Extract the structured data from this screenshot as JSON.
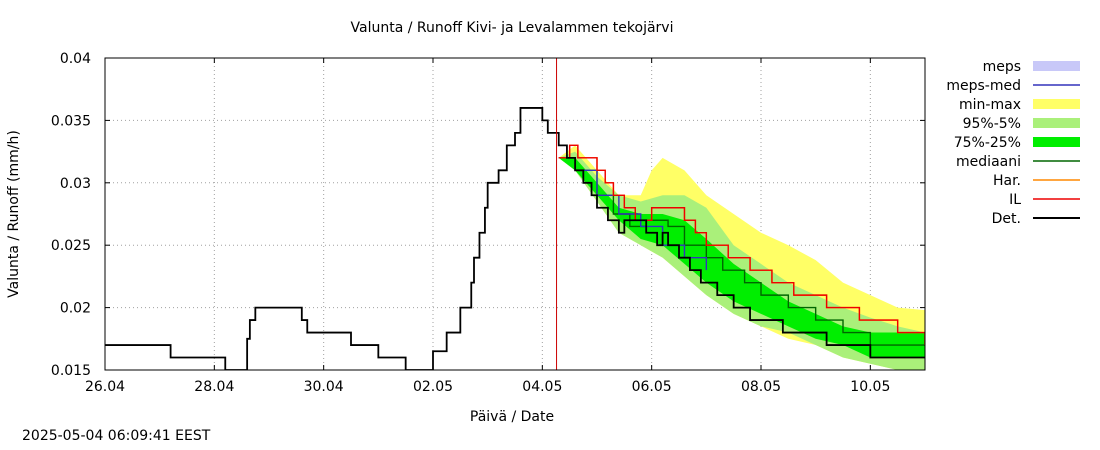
{
  "timestamp": "2025-05-04 06:09:41 EEST",
  "chart_data": {
    "type": "line",
    "title": "Valunta / Runoff  Kivi- ja Levalammen tekojärvi",
    "xlabel": "Päivä / Date",
    "ylabel": "Valunta / Runoff (mm/h)",
    "xlim": [
      0,
      15
    ],
    "ylim": [
      0.015,
      0.04
    ],
    "x_unit": "days since 26.04 00:00",
    "xticks": [
      {
        "x": 0,
        "label": "26.04"
      },
      {
        "x": 2,
        "label": "28.04"
      },
      {
        "x": 4,
        "label": "30.04"
      },
      {
        "x": 6,
        "label": "02.05"
      },
      {
        "x": 8,
        "label": "04.05"
      },
      {
        "x": 10,
        "label": "06.05"
      },
      {
        "x": 12,
        "label": "08.05"
      },
      {
        "x": 14,
        "label": "10.05"
      }
    ],
    "yticks": [
      {
        "y": 0.015,
        "label": "0.015"
      },
      {
        "y": 0.02,
        "label": "0.02"
      },
      {
        "y": 0.025,
        "label": "0.025"
      },
      {
        "y": 0.03,
        "label": "0.03"
      },
      {
        "y": 0.035,
        "label": "0.035"
      },
      {
        "y": 0.04,
        "label": "0.04"
      }
    ],
    "grid": true,
    "legend_position": "right",
    "forecast_start_x": 8.26,
    "legend": [
      {
        "label": "meps",
        "kind": "band",
        "color": "#c8c8f8"
      },
      {
        "label": "meps-med",
        "kind": "line",
        "color": "#3333bb"
      },
      {
        "label": "min-max",
        "kind": "band",
        "color": "#ffff66"
      },
      {
        "label": "95%-5%",
        "kind": "band",
        "color": "#aaf07a"
      },
      {
        "label": "75%-25%",
        "kind": "band",
        "color": "#00ee00"
      },
      {
        "label": "mediaani",
        "kind": "line",
        "color": "#006600"
      },
      {
        "label": "Har.",
        "kind": "line",
        "color": "#ff8800"
      },
      {
        "label": "IL",
        "kind": "line",
        "color": "#ee0000"
      },
      {
        "label": "Det.",
        "kind": "line",
        "color": "#000000"
      }
    ],
    "series": [
      {
        "name": "meps",
        "kind": "band",
        "color": "#c8c8f8",
        "x": [
          8.3,
          8.6,
          9.0,
          9.4,
          9.8,
          10.2,
          10.6,
          11.0
        ],
        "low": [
          0.032,
          0.0315,
          0.029,
          0.027,
          0.026,
          0.0245,
          0.0228,
          0.022
        ],
        "high": [
          0.032,
          0.0318,
          0.03,
          0.0285,
          0.0275,
          0.026,
          0.025,
          0.0245
        ]
      },
      {
        "name": "min-max",
        "kind": "band",
        "color": "#ffff66",
        "x": [
          8.3,
          8.6,
          9.0,
          9.4,
          9.8,
          10.0,
          10.2,
          10.6,
          11.0,
          11.5,
          12.0,
          12.5,
          13.0,
          13.5,
          14.0,
          14.5,
          15.0
        ],
        "low": [
          0.032,
          0.031,
          0.0285,
          0.026,
          0.025,
          0.0245,
          0.024,
          0.0225,
          0.021,
          0.0195,
          0.0185,
          0.0175,
          0.017,
          0.016,
          0.0155,
          0.015,
          0.0145
        ],
        "high": [
          0.032,
          0.033,
          0.031,
          0.029,
          0.029,
          0.031,
          0.032,
          0.031,
          0.029,
          0.0275,
          0.026,
          0.025,
          0.0238,
          0.022,
          0.021,
          0.02,
          0.0198
        ]
      },
      {
        "name": "95%-5%",
        "kind": "band",
        "color": "#aaf07a",
        "x": [
          8.3,
          8.6,
          9.0,
          9.4,
          9.8,
          10.2,
          10.6,
          11.0,
          11.5,
          12.0,
          12.5,
          13.0,
          13.5,
          14.0,
          14.5,
          15.0
        ],
        "low": [
          0.032,
          0.031,
          0.0285,
          0.026,
          0.025,
          0.024,
          0.0225,
          0.021,
          0.0195,
          0.0185,
          0.018,
          0.017,
          0.016,
          0.0155,
          0.015,
          0.0145
        ],
        "high": [
          0.032,
          0.0325,
          0.0305,
          0.029,
          0.0285,
          0.029,
          0.029,
          0.028,
          0.025,
          0.0235,
          0.022,
          0.021,
          0.02,
          0.0192,
          0.0185,
          0.018
        ]
      },
      {
        "name": "75%-25%",
        "kind": "band",
        "color": "#00ee00",
        "x": [
          8.3,
          8.6,
          9.0,
          9.4,
          9.8,
          10.2,
          10.6,
          11.0,
          11.5,
          12.0,
          12.5,
          13.0,
          13.5,
          14.0,
          14.5,
          15.0
        ],
        "low": [
          0.032,
          0.031,
          0.029,
          0.027,
          0.0255,
          0.025,
          0.0235,
          0.022,
          0.0205,
          0.0195,
          0.0185,
          0.0175,
          0.017,
          0.016,
          0.016,
          0.016
        ],
        "high": [
          0.032,
          0.032,
          0.03,
          0.028,
          0.0275,
          0.0275,
          0.027,
          0.0255,
          0.0235,
          0.022,
          0.0205,
          0.0195,
          0.0185,
          0.018,
          0.018,
          0.018
        ]
      },
      {
        "name": "mediaani",
        "kind": "step",
        "color": "#006600",
        "x": [
          8.3,
          8.6,
          9.0,
          9.3,
          9.6,
          9.9,
          10.3,
          10.6,
          11.0,
          11.3,
          11.7,
          12.0,
          12.5,
          13.0,
          13.5,
          14.0,
          15.0
        ],
        "y": [
          0.032,
          0.031,
          0.029,
          0.0275,
          0.0265,
          0.027,
          0.0265,
          0.025,
          0.024,
          0.023,
          0.022,
          0.021,
          0.02,
          0.019,
          0.018,
          0.017,
          0.017
        ]
      },
      {
        "name": "meps-med",
        "kind": "step",
        "color": "#3333bb",
        "x": [
          8.3,
          8.6,
          9.0,
          9.4,
          9.8,
          10.2,
          10.6,
          11.0
        ],
        "y": [
          0.032,
          0.031,
          0.029,
          0.0275,
          0.0265,
          0.025,
          0.024,
          0.023
        ]
      },
      {
        "name": "Har.",
        "kind": "step",
        "color": "#ff8800",
        "x": [
          8.3,
          8.5,
          8.65,
          8.8,
          9.0,
          9.15,
          9.3,
          9.5,
          9.7,
          9.85,
          10.0,
          10.4,
          10.6,
          10.8,
          11.0,
          11.4,
          11.8,
          12.2,
          12.6,
          13.2,
          13.8,
          14.5,
          15.0
        ],
        "y": [
          0.032,
          0.033,
          0.032,
          0.032,
          0.031,
          0.03,
          0.029,
          0.028,
          0.027,
          0.027,
          0.028,
          0.028,
          0.027,
          0.026,
          0.025,
          0.024,
          0.023,
          0.022,
          0.021,
          0.02,
          0.019,
          0.018,
          0.017
        ]
      },
      {
        "name": "IL",
        "kind": "step",
        "color": "#ee0000",
        "x": [
          8.3,
          8.5,
          8.65,
          8.8,
          9.0,
          9.15,
          9.3,
          9.5,
          9.7,
          9.85,
          10.0,
          10.4,
          10.6,
          10.8,
          11.0,
          11.4,
          11.8,
          12.2,
          12.6,
          13.2,
          13.8,
          14.5,
          15.0
        ],
        "y": [
          0.032,
          0.033,
          0.032,
          0.032,
          0.031,
          0.03,
          0.029,
          0.028,
          0.027,
          0.027,
          0.028,
          0.028,
          0.027,
          0.026,
          0.025,
          0.024,
          0.023,
          0.022,
          0.021,
          0.02,
          0.019,
          0.018,
          0.017
        ]
      },
      {
        "name": "Det.",
        "kind": "step",
        "color": "#000000",
        "x": [
          0,
          1.2,
          2.2,
          2.6,
          2.65,
          2.75,
          2.85,
          2.95,
          3.1,
          3.6,
          3.7,
          4.2,
          4.5,
          4.75,
          5.0,
          5.5,
          5.75,
          6.0,
          6.25,
          6.5,
          6.7,
          6.75,
          6.85,
          6.95,
          7.0,
          7.1,
          7.2,
          7.35,
          7.5,
          7.6,
          7.65,
          7.75,
          7.85,
          8.0,
          8.1,
          8.2,
          8.3,
          8.45,
          8.6,
          8.75,
          8.9,
          9.0,
          9.2,
          9.4,
          9.5,
          9.7,
          9.9,
          10.1,
          10.2,
          10.3,
          10.5,
          10.7,
          10.9,
          11.0,
          11.2,
          11.5,
          11.8,
          12.1,
          12.4,
          12.8,
          13.2,
          13.6,
          14.0,
          14.5,
          15.0
        ],
        "y": [
          0.017,
          0.016,
          0.015,
          0.0175,
          0.019,
          0.02,
          0.02,
          0.02,
          0.02,
          0.019,
          0.018,
          0.018,
          0.017,
          0.017,
          0.016,
          0.015,
          0.015,
          0.0165,
          0.018,
          0.02,
          0.022,
          0.024,
          0.026,
          0.028,
          0.03,
          0.03,
          0.031,
          0.033,
          0.034,
          0.036,
          0.036,
          0.036,
          0.036,
          0.035,
          0.034,
          0.034,
          0.033,
          0.032,
          0.031,
          0.03,
          0.029,
          0.028,
          0.027,
          0.026,
          0.027,
          0.027,
          0.026,
          0.025,
          0.026,
          0.025,
          0.024,
          0.023,
          0.022,
          0.022,
          0.021,
          0.02,
          0.019,
          0.019,
          0.018,
          0.018,
          0.017,
          0.017,
          0.016,
          0.016,
          0.016
        ]
      }
    ]
  }
}
